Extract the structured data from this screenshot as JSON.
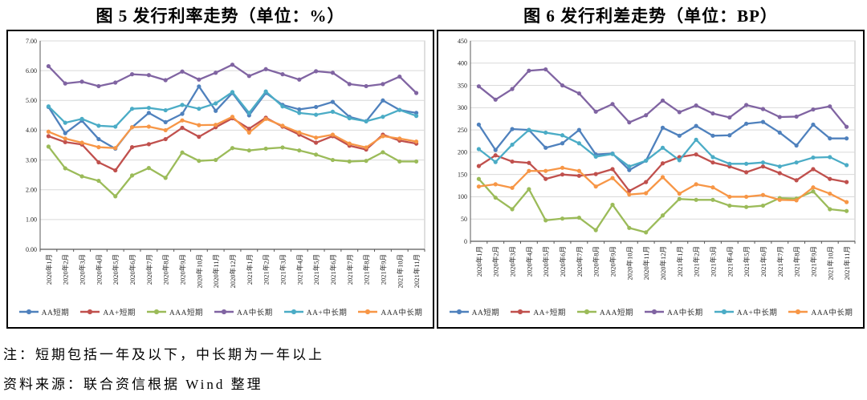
{
  "notes": {
    "note1": "注：短期包括一年及以下，中长期为一年以上",
    "note2": "资料来源：联合资信根据 Wind 整理"
  },
  "palette": {
    "aa_short": "#4F81BD",
    "aaplus_short": "#C0504D",
    "aaa_short": "#9BBB59",
    "aa_mid_long": "#8064A2",
    "aaplus_mid_long": "#4BACC6",
    "aaa_mid_long": "#F79646",
    "gridline": "#D9D9D9",
    "plot_border": "#BFBFBF",
    "axis": "#595959",
    "panel_border": "#000000"
  },
  "chart_data": [
    {
      "type": "line",
      "title": "图 5 发行利率走势（单位：%）",
      "unit": "%",
      "grid": true,
      "legend_position": "bottom",
      "ylim": [
        0,
        7
      ],
      "ytick_step": 1,
      "ytick_labels": [
        "0.00",
        "1.00",
        "2.00",
        "3.00",
        "4.00",
        "5.00",
        "6.00",
        "7.00"
      ],
      "categories": [
        "2020年1月",
        "2020年2月",
        "2020年3月",
        "2020年4月",
        "2020年5月",
        "2020年6月",
        "2020年7月",
        "2020年8月",
        "2020年9月",
        "2020年10月",
        "2020年11月",
        "2020年12月",
        "2021年1月",
        "2021年2月",
        "2021年3月",
        "2021年4月",
        "2021年5月",
        "2021年6月",
        "2021年7月",
        "2021年8月",
        "2021年9月",
        "2021年10月",
        "2021年11月"
      ],
      "series": [
        {
          "name": "AA短期",
          "color": "#4F81BD",
          "values": [
            4.78,
            3.9,
            4.32,
            3.7,
            3.38,
            4.1,
            4.58,
            4.27,
            4.55,
            5.47,
            4.65,
            5.25,
            4.5,
            5.25,
            4.85,
            4.7,
            4.78,
            4.95,
            4.45,
            4.3,
            5.0,
            4.68,
            4.58
          ]
        },
        {
          "name": "AA+短期",
          "color": "#C0504D",
          "values": [
            3.8,
            3.6,
            3.52,
            2.92,
            2.65,
            3.43,
            3.53,
            3.7,
            4.08,
            3.78,
            4.1,
            4.4,
            4.05,
            4.42,
            4.12,
            3.85,
            3.58,
            3.8,
            3.48,
            3.35,
            3.85,
            3.65,
            3.55
          ]
        },
        {
          "name": "AAA短期",
          "color": "#9BBB59",
          "values": [
            3.45,
            2.72,
            2.45,
            2.3,
            1.78,
            2.48,
            2.73,
            2.4,
            3.25,
            2.97,
            3.0,
            3.4,
            3.32,
            3.38,
            3.42,
            3.32,
            3.18,
            3.0,
            2.95,
            2.97,
            3.26,
            2.95,
            2.95
          ]
        },
        {
          "name": "AA中长期",
          "color": "#8064A2",
          "values": [
            6.15,
            5.57,
            5.63,
            5.48,
            5.6,
            5.88,
            5.85,
            5.68,
            5.97,
            5.7,
            5.93,
            6.2,
            5.82,
            6.05,
            5.88,
            5.7,
            5.98,
            5.93,
            5.55,
            5.48,
            5.55,
            5.8,
            5.25
          ]
        },
        {
          "name": "AA+中长期",
          "color": "#4BACC6",
          "values": [
            4.8,
            4.25,
            4.38,
            4.15,
            4.12,
            4.72,
            4.75,
            4.67,
            4.85,
            4.72,
            4.9,
            5.28,
            4.58,
            5.3,
            4.8,
            4.58,
            4.52,
            4.62,
            4.4,
            4.3,
            4.45,
            4.68,
            4.48
          ]
        },
        {
          "name": "AAA中长期",
          "color": "#F79646",
          "values": [
            3.95,
            3.72,
            3.58,
            3.43,
            3.4,
            4.1,
            4.12,
            4.0,
            4.33,
            4.17,
            4.18,
            4.45,
            3.92,
            4.38,
            4.15,
            3.92,
            3.75,
            3.85,
            3.55,
            3.42,
            3.8,
            3.72,
            3.62
          ]
        }
      ]
    },
    {
      "type": "line",
      "title": "图 6 发行利差走势（单位：BP）",
      "unit": "BP",
      "grid": true,
      "legend_position": "bottom",
      "ylim": [
        0,
        450
      ],
      "ytick_step": 50,
      "ytick_labels": [
        "0",
        "50",
        "100",
        "150",
        "200",
        "250",
        "300",
        "350",
        "400",
        "450"
      ],
      "categories": [
        "2020年1月",
        "2020年2月",
        "2020年3月",
        "2020年4月",
        "2020年5月",
        "2020年6月",
        "2020年7月",
        "2020年8月",
        "2020年9月",
        "2020年10月",
        "2020年11月",
        "2020年12月",
        "2021年1月",
        "2021年2月",
        "2021年3月",
        "2021年4月",
        "2021年5月",
        "2021年6月",
        "2021年7月",
        "2021年8月",
        "2021年9月",
        "2021年10月",
        "2021年11月"
      ],
      "series": [
        {
          "name": "AA短期",
          "color": "#4F81BD",
          "values": [
            262,
            205,
            252,
            250,
            210,
            220,
            250,
            195,
            197,
            160,
            181,
            255,
            237,
            259,
            237,
            238,
            264,
            268,
            244,
            215,
            262,
            231,
            231
          ]
        },
        {
          "name": "AA+短期",
          "color": "#C0504D",
          "values": [
            169,
            193,
            179,
            176,
            140,
            150,
            147,
            151,
            162,
            113,
            133,
            175,
            189,
            195,
            177,
            168,
            155,
            168,
            153,
            137,
            162,
            140,
            133
          ]
        },
        {
          "name": "AAA短期",
          "color": "#9BBB59",
          "values": [
            140,
            98,
            72,
            117,
            47,
            51,
            53,
            25,
            82,
            30,
            20,
            58,
            95,
            93,
            93,
            80,
            77,
            80,
            97,
            96,
            112,
            72,
            68
          ]
        },
        {
          "name": "AA中长期",
          "color": "#8064A2",
          "values": [
            348,
            318,
            342,
            383,
            386,
            350,
            332,
            291,
            308,
            267,
            283,
            316,
            290,
            305,
            287,
            278,
            306,
            297,
            279,
            280,
            296,
            303,
            257
          ]
        },
        {
          "name": "AA+中长期",
          "color": "#4BACC6",
          "values": [
            207,
            178,
            217,
            250,
            244,
            238,
            220,
            190,
            196,
            168,
            181,
            210,
            182,
            228,
            189,
            174,
            174,
            177,
            168,
            177,
            188,
            189,
            171
          ]
        },
        {
          "name": "AAA中长期",
          "color": "#F79646",
          "values": [
            123,
            128,
            120,
            158,
            158,
            165,
            158,
            123,
            142,
            105,
            108,
            144,
            107,
            128,
            121,
            100,
            100,
            104,
            93,
            92,
            121,
            107,
            88
          ]
        }
      ]
    }
  ]
}
